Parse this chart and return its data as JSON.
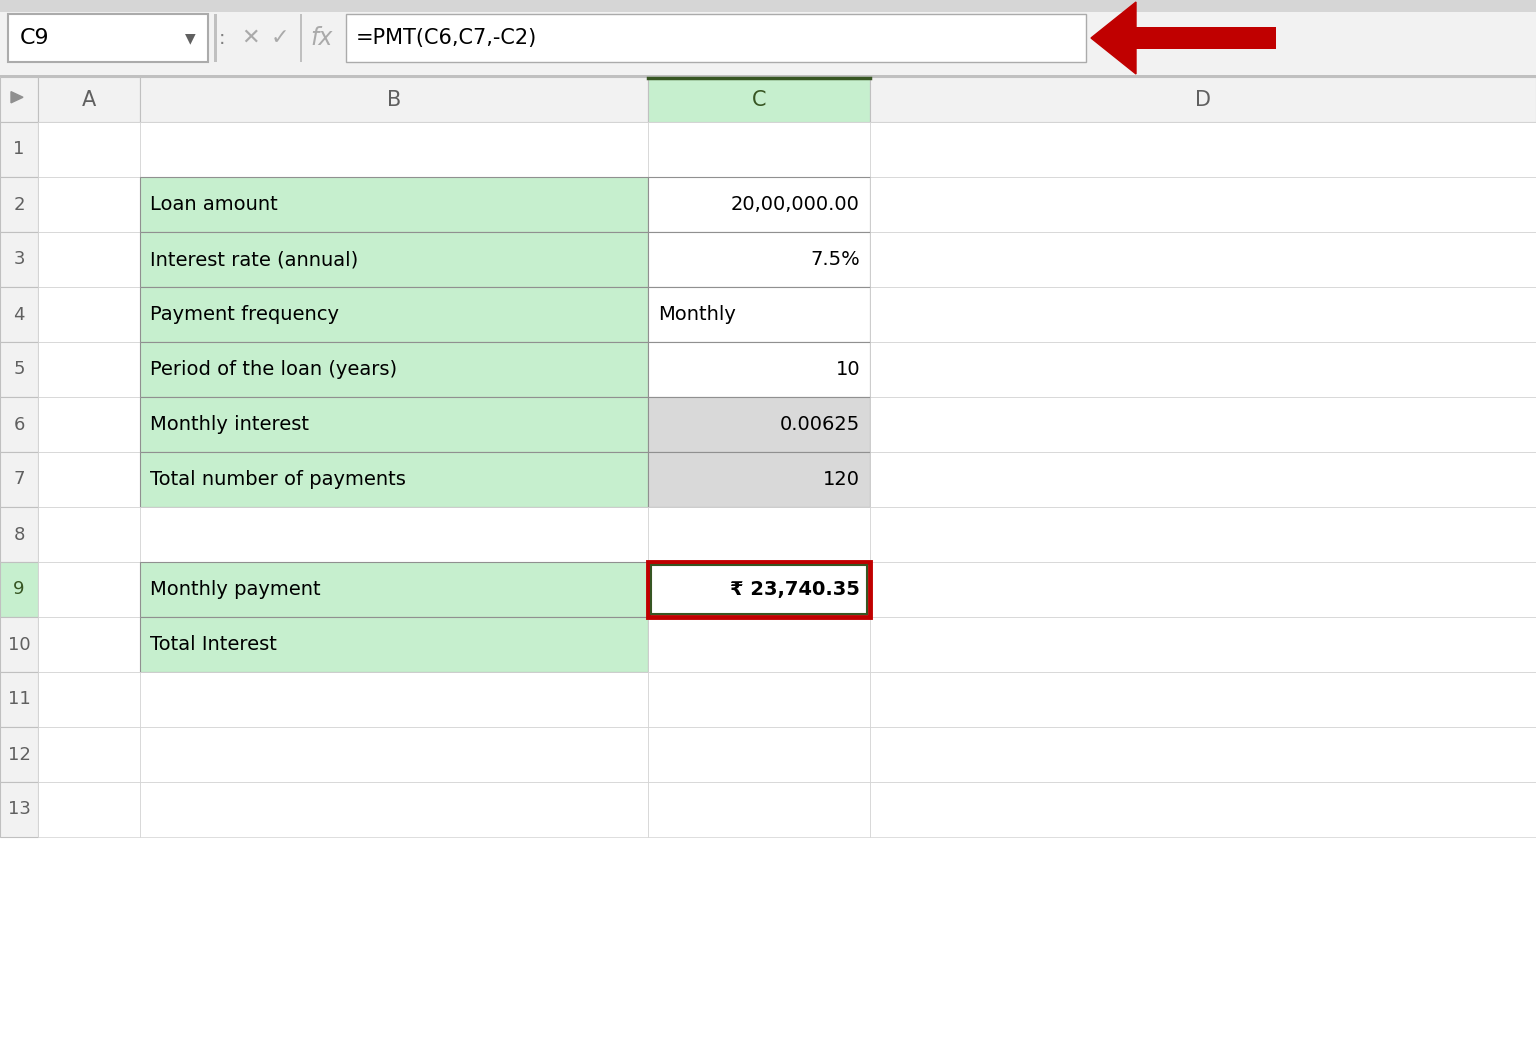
{
  "formula_bar_cell": "C9",
  "formula_bar_formula": "=PMT(C6,C7,-C2)",
  "col_headers": [
    "A",
    "B",
    "C",
    "D"
  ],
  "rows": [
    {
      "row": 1,
      "B": "",
      "C": "",
      "C_align": "right"
    },
    {
      "row": 2,
      "B": "Loan amount",
      "C": "20,00,000.00",
      "C_align": "right"
    },
    {
      "row": 3,
      "B": "Interest rate (annual)",
      "C": "7.5%",
      "C_align": "right"
    },
    {
      "row": 4,
      "B": "Payment frequency",
      "C": "Monthly",
      "C_align": "left"
    },
    {
      "row": 5,
      "B": "Period of the loan (years)",
      "C": "10",
      "C_align": "right"
    },
    {
      "row": 6,
      "B": "Monthly interest",
      "C": "0.00625",
      "C_align": "right"
    },
    {
      "row": 7,
      "B": "Total number of payments",
      "C": "120",
      "C_align": "right"
    },
    {
      "row": 8,
      "B": "",
      "C": "",
      "C_align": "right"
    },
    {
      "row": 9,
      "B": "Monthly payment",
      "C": "₹ 23,740.35",
      "C_align": "right"
    },
    {
      "row": 10,
      "B": "Total Interest",
      "C": "",
      "C_align": "right"
    },
    {
      "row": 11,
      "B": "",
      "C": "",
      "C_align": "right"
    },
    {
      "row": 12,
      "B": "",
      "C": "",
      "C_align": "right"
    },
    {
      "row": 13,
      "B": "",
      "C": "",
      "C_align": "right"
    }
  ],
  "green_fill_B": [
    2,
    3,
    4,
    5,
    6,
    7,
    9,
    10
  ],
  "gray_fill_C": [
    6,
    7
  ],
  "highlight_row": 9,
  "highlight_col": "C",
  "highlight_col_header": "C",
  "green_fill": "#C6EFCE",
  "gray_fill": "#D9D9D9",
  "col_header_selected_bg": "#C6EFCE",
  "col_header_selected_fg": "#375623",
  "row_header_selected_bg": "#C6EFCE",
  "row_header_selected_fg": "#375623",
  "highlight_border_red": "#C00000",
  "highlight_border_green": "#375623",
  "font_size": 14,
  "formula_font_size": 15
}
